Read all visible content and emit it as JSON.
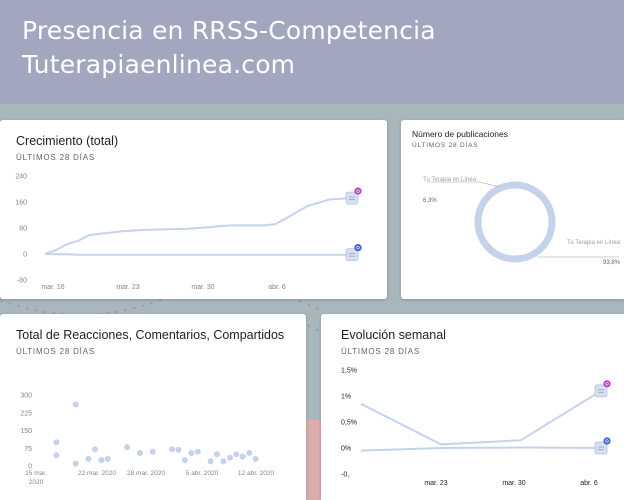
{
  "header": {
    "title_line1": "Presencia en RRSS-Competencia",
    "title_line2": "Tuterapiaenlinea.com"
  },
  "colors": {
    "header_bg": "#a3a6bf",
    "series_line": "#c5d3ea",
    "instagram": "#c23dbf",
    "facebook": "#3b5fd6",
    "accent_pink": "#f2a5a5"
  },
  "cards": {
    "growth": {
      "title": "Crecimiento (total)",
      "subtitle": "ÚLTIMOS 28 DÍAS"
    },
    "posts": {
      "title": "Número de publicaciones",
      "subtitle": "ÚLTIMOS 28 DÍAS",
      "label_a": "Tu Terapia en Línea",
      "label_b": "Tu Terapia en Línea",
      "pct_a": "6,3%",
      "pct_b": "93,8%"
    },
    "reactions": {
      "title": "Total de Reacciones, Comentarios, Compartidos",
      "subtitle": "ÚLTIMOS 28 DÍAS"
    },
    "weekly": {
      "title": "Evolución semanal",
      "subtitle": "ÚLTIMOS 28 DÍAS"
    }
  },
  "chart_data": [
    {
      "type": "line",
      "chart": "growth",
      "yticks": [
        "240",
        "160",
        "80",
        "0",
        "-80"
      ],
      "ylim": [
        -80,
        240
      ],
      "xticks": [
        "mar. 16",
        "mar. 23",
        "mar. 30",
        "abr. 6"
      ],
      "series": [
        {
          "icon": "instagram",
          "values": [
            0,
            12,
            30,
            40,
            58,
            62,
            66,
            70,
            72,
            74,
            75,
            76,
            77,
            78,
            80,
            82,
            86,
            88,
            88,
            88,
            88,
            92,
            110,
            130,
            148,
            158,
            168,
            170,
            172
          ]
        },
        {
          "icon": "facebook",
          "values": [
            0,
            -1,
            -1,
            -2,
            -2,
            -2,
            -2,
            -2,
            -2,
            -2,
            -2,
            -2,
            -2,
            -2,
            -2,
            -2,
            -2,
            -2,
            -2,
            -2,
            -2,
            -2,
            -2,
            -2,
            -2,
            -2,
            -2,
            -2,
            -2
          ]
        }
      ]
    },
    {
      "type": "pie",
      "chart": "posts",
      "slices": [
        {
          "label": "Tu Terapia en Línea",
          "value": 6.3
        },
        {
          "label": "Tu Terapia en Línea",
          "value": 93.8
        }
      ]
    },
    {
      "type": "scatter",
      "chart": "reactions",
      "yticks": [
        "300",
        "225",
        "150",
        "75",
        "0"
      ],
      "ylim": [
        0,
        300
      ],
      "xticks": [
        "15 mar. 2020",
        "22 mar. 2020",
        "28 mar. 2020",
        "5 abr. 2020",
        "12 abr. 2020"
      ],
      "points": [
        [
          1,
          100
        ],
        [
          1,
          45
        ],
        [
          4,
          260
        ],
        [
          4,
          10
        ],
        [
          6,
          30
        ],
        [
          7,
          70
        ],
        [
          8,
          25
        ],
        [
          9,
          30
        ],
        [
          12,
          80
        ],
        [
          14,
          55
        ],
        [
          16,
          60
        ],
        [
          19,
          70
        ],
        [
          20,
          68
        ],
        [
          21,
          25
        ],
        [
          22,
          55
        ],
        [
          23,
          60
        ],
        [
          25,
          20
        ],
        [
          26,
          50
        ],
        [
          27,
          20
        ],
        [
          28,
          35
        ],
        [
          29,
          50
        ],
        [
          30,
          40
        ],
        [
          31,
          55
        ],
        [
          32,
          30
        ]
      ],
      "xmax": 33
    },
    {
      "type": "line",
      "chart": "weekly",
      "yticks": [
        "1,5%",
        "1%",
        "0,5%",
        "0%",
        "-0,"
      ],
      "ylim": [
        -0.5,
        1.5
      ],
      "xticks": [
        "mar. 23",
        "mar. 30",
        "abr. 6"
      ],
      "series": [
        {
          "icon": "instagram",
          "values": [
            0.85,
            0.07,
            0.15,
            1.1
          ]
        },
        {
          "icon": "facebook",
          "values": [
            -0.05,
            0.0,
            0.01,
            0.0
          ]
        }
      ]
    }
  ]
}
